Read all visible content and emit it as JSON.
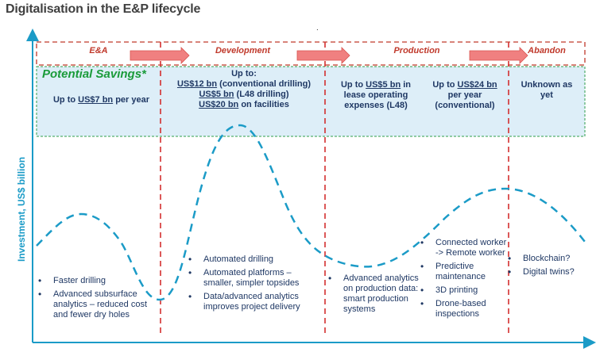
{
  "title": "Digitalisation in the E&P lifecycle",
  "dot_mark": ".",
  "y_axis_label": "Investment, US$ billion",
  "stages": [
    {
      "label": "E&A"
    },
    {
      "label": "Development"
    },
    {
      "label": "Production"
    },
    {
      "label": "Abandon"
    }
  ],
  "savings_label": "Potential Savings*",
  "savings": {
    "ea": {
      "pre": "Up to ",
      "amt": "US$7 bn",
      "post": " per year"
    },
    "dev": {
      "intro": "Up to:",
      "lines": [
        {
          "amt": "US$12 bn",
          "post": " (conventional drilling)"
        },
        {
          "amt": "US$5 bn",
          "post": " (L48 drilling)"
        },
        {
          "amt": "US$20 bn",
          "post": " on facilities"
        }
      ]
    },
    "prod1": {
      "pre": "Up to ",
      "amt": "US$5 bn",
      "l1post": " in",
      "l2": "lease operating",
      "l3": "expenses (L48)"
    },
    "prod2": {
      "pre": "Up to ",
      "amt": "US$24 bn",
      "l2": "per year",
      "l3": "(conventional)"
    },
    "abandon": {
      "l1": "Unknown as",
      "l2": "yet"
    }
  },
  "bullets": {
    "ea": [
      "Faster drilling",
      "Advanced subsurface analytics – reduced cost and fewer dry holes"
    ],
    "dev": [
      "Automated drilling",
      "Automated platforms – smaller, simpler topsides",
      "Data/advanced analytics improves project delivery"
    ],
    "prod1": [
      "Advanced analytics on production data: smart production systems"
    ],
    "prod2": [
      "Connected worker -> Remote worker",
      "Predictive maintenance",
      "3D printing",
      "Drone-based inspections"
    ],
    "abandon": [
      "Blockchain?",
      "Digital twins?"
    ]
  },
  "colors": {
    "stage_red": "#c0392b",
    "arrow_fill": "#f08080",
    "savings_green": "#1a9b3a",
    "band_blue": "#ddeef8",
    "curve_blue": "#1b9bc7",
    "text_navy": "#1f3864"
  }
}
